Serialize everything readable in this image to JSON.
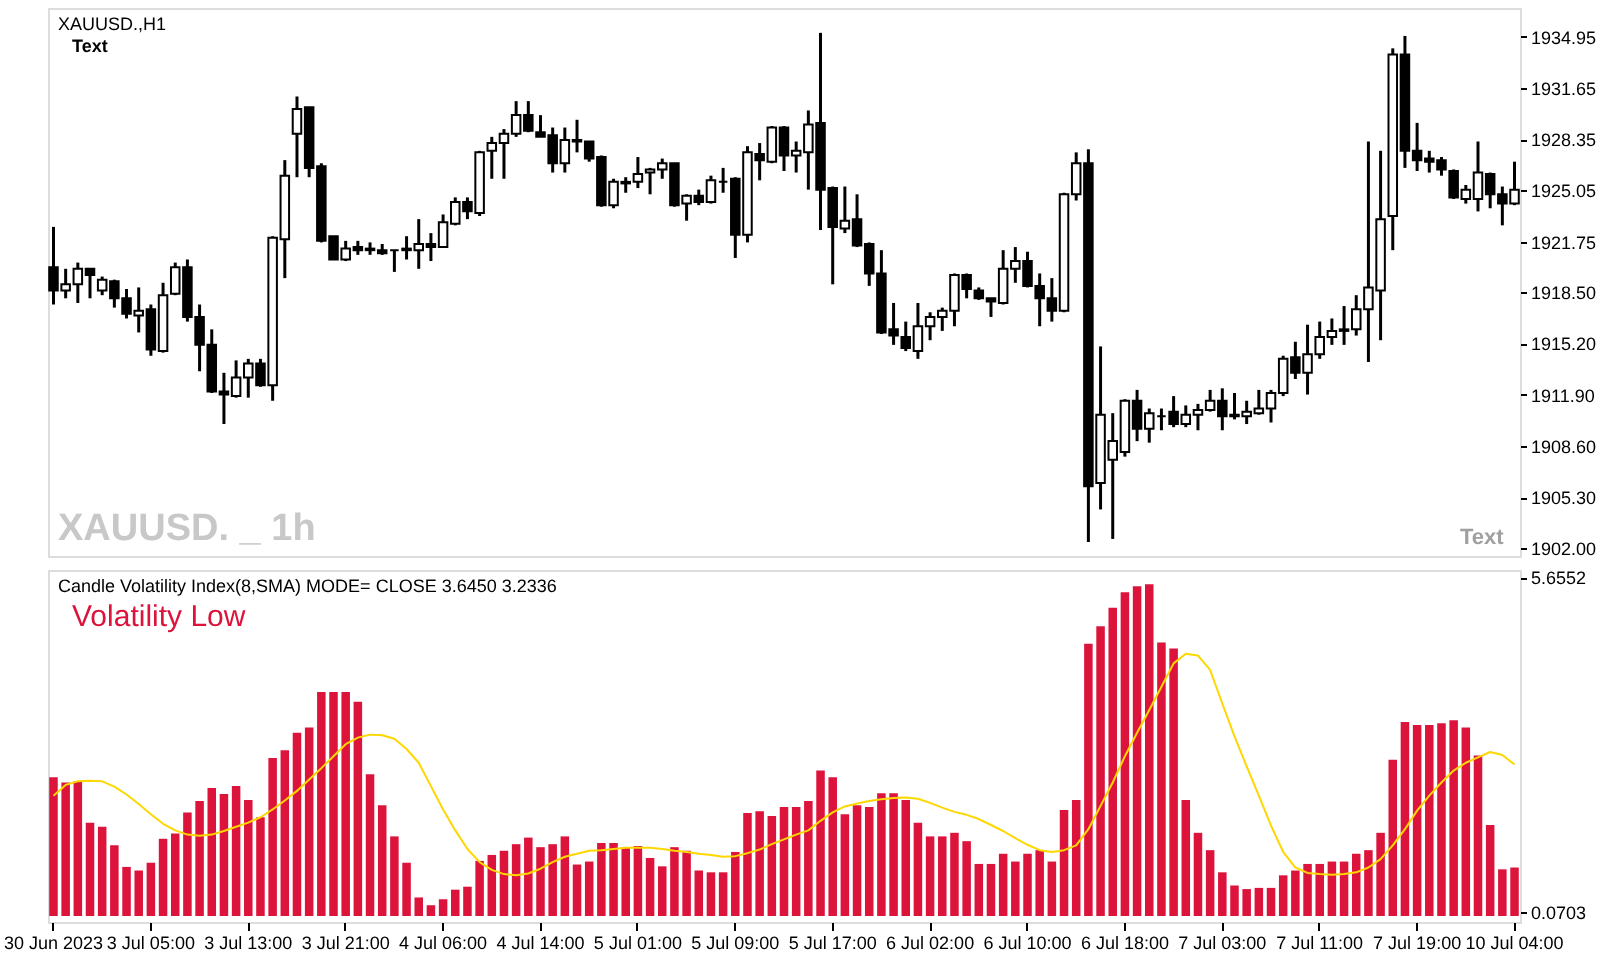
{
  "chart_data": [
    {
      "type": "candlestick",
      "title": "XAUUSD.,H1",
      "annotations": [
        "Text",
        "XAUUSD. _ 1h",
        "Text"
      ],
      "tick_labels": "y",
      "categories": [
        null,
        null,
        null,
        null,
        null,
        null,
        null,
        null,
        null,
        null,
        null,
        null,
        null,
        null,
        null,
        null,
        null,
        null,
        null,
        null,
        null,
        null,
        null,
        null,
        null,
        null,
        null,
        null,
        null,
        null,
        null,
        null,
        null,
        null,
        null,
        null,
        null,
        null,
        null,
        null,
        null,
        null,
        null,
        null,
        null,
        null,
        null,
        null,
        null,
        null,
        null,
        null,
        null,
        null,
        null,
        null,
        null,
        null,
        null,
        null,
        null,
        null,
        null,
        null,
        null,
        null,
        null,
        null,
        null,
        null,
        null,
        null,
        null,
        null,
        null,
        null,
        null,
        null,
        null,
        null,
        null,
        null,
        null,
        null,
        null,
        null,
        null,
        null,
        null,
        null,
        null,
        null,
        null,
        null,
        null,
        null,
        null,
        null,
        null,
        null,
        null,
        null,
        null,
        null,
        null,
        null,
        null,
        null,
        null,
        null,
        null,
        null,
        null,
        null,
        null,
        null,
        null,
        null,
        null,
        null,
        null
      ],
      "ohlc": [
        [
          1920.1,
          1922.7,
          1917.7,
          1918.6
        ],
        [
          1918.6,
          1920.0,
          1918.1,
          1919.0
        ],
        [
          1919.0,
          1920.4,
          1917.8,
          1920.0
        ],
        [
          1920.0,
          1920.0,
          1918.1,
          1919.6
        ],
        [
          1918.6,
          1919.5,
          1918.3,
          1919.3
        ],
        [
          1919.2,
          1919.3,
          1917.5,
          1918.1
        ],
        [
          1918.1,
          1918.7,
          1916.8,
          1917.1
        ],
        [
          1917.0,
          1918.8,
          1915.9,
          1917.3
        ],
        [
          1917.4,
          1917.7,
          1914.4,
          1914.8
        ],
        [
          1914.7,
          1919.1,
          1914.6,
          1918.3
        ],
        [
          1918.4,
          1920.4,
          1918.3,
          1920.1
        ],
        [
          1920.1,
          1920.6,
          1916.6,
          1916.9
        ],
        [
          1916.9,
          1917.7,
          1913.4,
          1915.1
        ],
        [
          1915.1,
          1916.1,
          1912.0,
          1912.1
        ],
        [
          1912.1,
          1913.3,
          1910.0,
          1911.9
        ],
        [
          1911.8,
          1914.1,
          1911.7,
          1913.0
        ],
        [
          1913.0,
          1914.2,
          1911.7,
          1913.9
        ],
        [
          1913.9,
          1914.2,
          1912.4,
          1912.5
        ],
        [
          1912.5,
          1922.1,
          1911.5,
          1922.0
        ],
        [
          1921.9,
          1927.0,
          1919.4,
          1926.0
        ],
        [
          1928.7,
          1931.1,
          1925.9,
          1930.3
        ],
        [
          1930.4,
          1930.4,
          1925.9,
          1926.5
        ],
        [
          1926.6,
          1926.8,
          1921.7,
          1921.8
        ],
        [
          1922.1,
          1922.1,
          1920.6,
          1920.6
        ],
        [
          1920.6,
          1921.8,
          1920.5,
          1921.3
        ],
        [
          1921.4,
          1921.8,
          1920.9,
          1921.2
        ],
        [
          1921.2,
          1921.7,
          1920.9,
          1921.3
        ],
        [
          1921.2,
          1921.6,
          1920.9,
          1921.0
        ],
        [
          1921.2,
          1921.2,
          1919.8,
          1921.2
        ],
        [
          1921.2,
          1922.1,
          1920.6,
          1921.3
        ],
        [
          1921.2,
          1923.2,
          1920.0,
          1921.6
        ],
        [
          1921.6,
          1922.3,
          1920.5,
          1921.4
        ],
        [
          1921.4,
          1923.5,
          1921.4,
          1923.0
        ],
        [
          1922.9,
          1924.6,
          1922.8,
          1924.3
        ],
        [
          1924.3,
          1924.6,
          1923.2,
          1923.7
        ],
        [
          1923.6,
          1927.6,
          1923.4,
          1927.5
        ],
        [
          1927.6,
          1928.5,
          1925.8,
          1928.1
        ],
        [
          1928.1,
          1929.0,
          1925.8,
          1928.7
        ],
        [
          1928.7,
          1930.8,
          1928.5,
          1929.9
        ],
        [
          1929.9,
          1930.8,
          1928.8,
          1928.9
        ],
        [
          1928.8,
          1929.9,
          1928.5,
          1928.5
        ],
        [
          1928.6,
          1929.1,
          1926.2,
          1926.8
        ],
        [
          1926.8,
          1929.1,
          1926.2,
          1928.3
        ],
        [
          1928.3,
          1929.6,
          1927.5,
          1928.2
        ],
        [
          1928.2,
          1928.2,
          1926.9,
          1927.1
        ],
        [
          1927.2,
          1927.3,
          1924.0,
          1924.1
        ],
        [
          1924.1,
          1925.8,
          1923.9,
          1925.6
        ],
        [
          1925.5,
          1925.9,
          1924.9,
          1925.6
        ],
        [
          1925.6,
          1927.2,
          1925.2,
          1926.1
        ],
        [
          1926.2,
          1926.5,
          1924.8,
          1926.4
        ],
        [
          1926.4,
          1927.1,
          1925.8,
          1926.8
        ],
        [
          1926.8,
          1926.8,
          1924.0,
          1924.1
        ],
        [
          1924.2,
          1924.8,
          1923.1,
          1924.7
        ],
        [
          1924.7,
          1925.1,
          1924.1,
          1924.3
        ],
        [
          1924.3,
          1926.0,
          1924.2,
          1925.7
        ],
        [
          1925.6,
          1926.5,
          1924.9,
          1925.6
        ],
        [
          1925.8,
          1925.9,
          1920.7,
          1922.2
        ],
        [
          1922.2,
          1927.9,
          1921.7,
          1927.5
        ],
        [
          1927.4,
          1928.1,
          1925.7,
          1927.0
        ],
        [
          1926.9,
          1929.2,
          1926.8,
          1929.1
        ],
        [
          1929.1,
          1929.2,
          1926.3,
          1927.3
        ],
        [
          1927.3,
          1928.2,
          1926.2,
          1927.6
        ],
        [
          1927.5,
          1930.2,
          1925.1,
          1929.3
        ],
        [
          1929.4,
          1935.2,
          1922.5,
          1925.1
        ],
        [
          1925.2,
          1925.3,
          1919.0,
          1922.7
        ],
        [
          1922.6,
          1925.3,
          1922.3,
          1923.1
        ],
        [
          1923.2,
          1924.8,
          1921.4,
          1921.5
        ],
        [
          1921.6,
          1921.7,
          1918.9,
          1919.7
        ],
        [
          1919.7,
          1921.2,
          1915.8,
          1915.9
        ],
        [
          1916.1,
          1917.8,
          1915.1,
          1915.7
        ],
        [
          1915.6,
          1916.6,
          1914.7,
          1914.9
        ],
        [
          1914.7,
          1917.8,
          1914.2,
          1916.3
        ],
        [
          1916.3,
          1917.2,
          1915.4,
          1916.9
        ],
        [
          1916.9,
          1917.5,
          1916.0,
          1917.3
        ],
        [
          1917.3,
          1919.7,
          1916.3,
          1919.6
        ],
        [
          1919.6,
          1919.7,
          1918.1,
          1918.7
        ],
        [
          1918.6,
          1918.8,
          1918.0,
          1918.1
        ],
        [
          1918.1,
          1918.1,
          1916.9,
          1917.9
        ],
        [
          1917.8,
          1921.2,
          1917.7,
          1920.0
        ],
        [
          1920.0,
          1921.4,
          1919.1,
          1920.5
        ],
        [
          1920.5,
          1921.1,
          1918.8,
          1918.9
        ],
        [
          1918.9,
          1919.7,
          1916.3,
          1918.1
        ],
        [
          1918.1,
          1919.4,
          1916.6,
          1917.3
        ],
        [
          1917.3,
          1924.9,
          1917.2,
          1924.8
        ],
        [
          1924.8,
          1927.5,
          1924.4,
          1926.8
        ],
        [
          1926.8,
          1927.7,
          1902.4,
          1906.0
        ],
        [
          1906.2,
          1915.0,
          1904.5,
          1910.6
        ],
        [
          1907.7,
          1910.7,
          1902.6,
          1908.9
        ],
        [
          1908.2,
          1911.6,
          1907.9,
          1911.5
        ],
        [
          1911.5,
          1912.2,
          1908.9,
          1909.7
        ],
        [
          1909.7,
          1911.0,
          1908.8,
          1910.7
        ],
        [
          1910.5,
          1911.0,
          1909.6,
          1910.5
        ],
        [
          1910.8,
          1911.8,
          1909.8,
          1910.0
        ],
        [
          1910.0,
          1911.2,
          1909.8,
          1910.6
        ],
        [
          1910.6,
          1911.3,
          1909.6,
          1910.9
        ],
        [
          1910.9,
          1912.2,
          1910.8,
          1911.5
        ],
        [
          1911.5,
          1912.3,
          1909.6,
          1910.5
        ],
        [
          1910.5,
          1912.0,
          1910.3,
          1910.6
        ],
        [
          1910.5,
          1911.5,
          1910.0,
          1910.8
        ],
        [
          1910.7,
          1912.2,
          1910.6,
          1911.0
        ],
        [
          1911.0,
          1912.2,
          1910.1,
          1912.0
        ],
        [
          1912.0,
          1914.4,
          1911.8,
          1914.2
        ],
        [
          1914.3,
          1915.3,
          1912.9,
          1913.3
        ],
        [
          1913.3,
          1916.4,
          1911.9,
          1914.5
        ],
        [
          1914.5,
          1916.6,
          1914.2,
          1915.6
        ],
        [
          1915.6,
          1916.8,
          1915.1,
          1916.0
        ],
        [
          1916.0,
          1917.6,
          1915.1,
          1916.1
        ],
        [
          1916.1,
          1918.3,
          1915.7,
          1917.4
        ],
        [
          1917.4,
          1928.2,
          1914.0,
          1918.8
        ],
        [
          1918.6,
          1927.6,
          1915.4,
          1923.2
        ],
        [
          1923.4,
          1934.2,
          1921.2,
          1933.8
        ],
        [
          1933.8,
          1935.0,
          1926.5,
          1927.6
        ],
        [
          1927.6,
          1929.4,
          1926.3,
          1927.0
        ],
        [
          1927.1,
          1927.6,
          1926.2,
          1926.9
        ],
        [
          1927.0,
          1927.2,
          1926.0,
          1926.4
        ],
        [
          1926.3,
          1926.4,
          1924.5,
          1924.6
        ],
        [
          1924.5,
          1925.4,
          1924.2,
          1925.1
        ],
        [
          1924.5,
          1928.2,
          1923.7,
          1926.2
        ],
        [
          1926.1,
          1926.2,
          1923.9,
          1924.8
        ],
        [
          1924.8,
          1925.3,
          1922.8,
          1924.2
        ],
        [
          1924.2,
          1926.9,
          1924.1,
          1925.1
        ]
      ],
      "ylim": [
        1901.5,
        1936.8
      ],
      "yticks": [
        {
          "value": 1902,
          "label": "1902.00"
        },
        {
          "value": 1905.3,
          "label": "1905.30"
        },
        {
          "value": 1908.6,
          "label": "1908.60"
        },
        {
          "value": 1911.9,
          "label": "1911.90"
        },
        {
          "value": 1915.2,
          "label": "1915.20"
        },
        {
          "value": 1918.5,
          "label": "1918.50"
        },
        1921.75,
        1925.05,
        1928.35,
        1931.65,
        1934.95
      ]
    },
    {
      "type": "bar",
      "title": "Candle Volatility Index(8,SMA) MODE= CLOSE 3.6450 3.2336",
      "annotations": [
        "Volatility Low"
      ],
      "categories": [
        "30 Jun 2023",
        null,
        null,
        null,
        null,
        null,
        null,
        null,
        "3 Jul 05:00",
        null,
        null,
        null,
        null,
        null,
        null,
        null,
        "3 Jul 13:00",
        null,
        null,
        null,
        null,
        null,
        null,
        null,
        "3 Jul 21:00",
        null,
        null,
        null,
        null,
        null,
        null,
        null,
        "4 Jul 06:00",
        null,
        null,
        null,
        null,
        null,
        null,
        null,
        "4 Jul 14:00",
        null,
        null,
        null,
        null,
        null,
        null,
        null,
        "5 Jul 01:00",
        null,
        null,
        null,
        null,
        null,
        null,
        null,
        "5 Jul 09:00",
        null,
        null,
        null,
        null,
        null,
        null,
        null,
        "5 Jul 17:00",
        null,
        null,
        null,
        null,
        null,
        null,
        null,
        "6 Jul 02:00",
        null,
        null,
        null,
        null,
        null,
        null,
        null,
        "6 Jul 10:00",
        null,
        null,
        null,
        null,
        null,
        null,
        null,
        "6 Jul 18:00",
        null,
        null,
        null,
        null,
        null,
        null,
        null,
        "7 Jul 03:00",
        null,
        null,
        null,
        null,
        null,
        null,
        null,
        "7 Jul 11:00",
        null,
        null,
        null,
        null,
        null,
        null,
        null,
        "7 Jul 19:00",
        null,
        null,
        null,
        null,
        null,
        null,
        null,
        "10 Jul 04:00"
      ],
      "series": [
        {
          "type": "bar",
          "color": "#dc143c",
          "values": [
            2.32,
            2.23,
            2.25,
            1.56,
            1.49,
            1.18,
            0.82,
            0.76,
            0.89,
            1.29,
            1.38,
            1.73,
            1.92,
            2.14,
            2.04,
            2.17,
            1.94,
            1.65,
            2.64,
            2.77,
            3.06,
            3.15,
            3.74,
            3.74,
            3.74,
            3.58,
            2.37,
            1.85,
            1.33,
            0.89,
            0.31,
            0.18,
            0.28,
            0.44,
            0.49,
            0.92,
            1.02,
            1.09,
            1.2,
            1.31,
            1.15,
            1.2,
            1.33,
            0.86,
            0.91,
            1.22,
            1.22,
            1.15,
            1.17,
            0.97,
            0.83,
            1.15,
            1.09,
            0.76,
            0.73,
            0.73,
            1.07,
            1.72,
            1.75,
            1.67,
            1.82,
            1.82,
            1.92,
            2.43,
            2.32,
            1.7,
            1.85,
            1.82,
            2.05,
            2.05,
            1.94,
            1.56,
            1.33,
            1.33,
            1.39,
            1.25,
            0.87,
            0.87,
            1.04,
            0.91,
            1.04,
            1.1,
            0.91,
            1.77,
            1.94,
            4.55,
            4.84,
            5.15,
            5.41,
            5.51,
            5.54,
            4.57,
            4.47,
            1.94,
            1.39,
            1.1,
            0.73,
            0.51,
            0.45,
            0.47,
            0.47,
            0.68,
            0.76,
            0.87,
            0.87,
            0.91,
            0.91,
            1.04,
            1.1,
            1.39,
            2.61,
            3.24,
            3.19,
            3.19,
            3.22,
            3.27,
            3.15,
            2.68,
            1.52,
            0.78,
            0.81
          ]
        },
        {
          "type": "line",
          "color": "#ffd700",
          "values": [
            2.01,
            2.19,
            2.25,
            2.26,
            2.25,
            2.16,
            2.03,
            1.87,
            1.7,
            1.54,
            1.43,
            1.36,
            1.34,
            1.36,
            1.42,
            1.49,
            1.56,
            1.65,
            1.78,
            1.93,
            2.09,
            2.28,
            2.47,
            2.67,
            2.87,
            2.98,
            3.03,
            3.02,
            2.96,
            2.79,
            2.56,
            2.17,
            1.78,
            1.43,
            1.12,
            0.9,
            0.77,
            0.7,
            0.68,
            0.71,
            0.79,
            0.9,
            0.99,
            1.04,
            1.09,
            1.1,
            1.12,
            1.14,
            1.14,
            1.14,
            1.12,
            1.09,
            1.07,
            1.04,
            1.02,
            0.99,
            1.0,
            1.05,
            1.11,
            1.2,
            1.28,
            1.36,
            1.43,
            1.59,
            1.73,
            1.83,
            1.88,
            1.92,
            1.95,
            1.97,
            1.98,
            1.96,
            1.89,
            1.81,
            1.74,
            1.69,
            1.62,
            1.52,
            1.42,
            1.3,
            1.19,
            1.1,
            1.07,
            1.1,
            1.18,
            1.45,
            1.84,
            2.23,
            2.67,
            3.06,
            3.44,
            3.83,
            4.22,
            4.38,
            4.35,
            4.11,
            3.55,
            3.0,
            2.5,
            2.01,
            1.51,
            1.07,
            0.81,
            0.72,
            0.7,
            0.69,
            0.7,
            0.73,
            0.81,
            0.95,
            1.18,
            1.45,
            1.76,
            2.01,
            2.23,
            2.43,
            2.56,
            2.65,
            2.74,
            2.69,
            2.53
          ]
        }
      ],
      "ylim": [
        -0.1,
        5.78
      ],
      "yticks": [
        0.0703,
        5.6552
      ]
    }
  ]
}
